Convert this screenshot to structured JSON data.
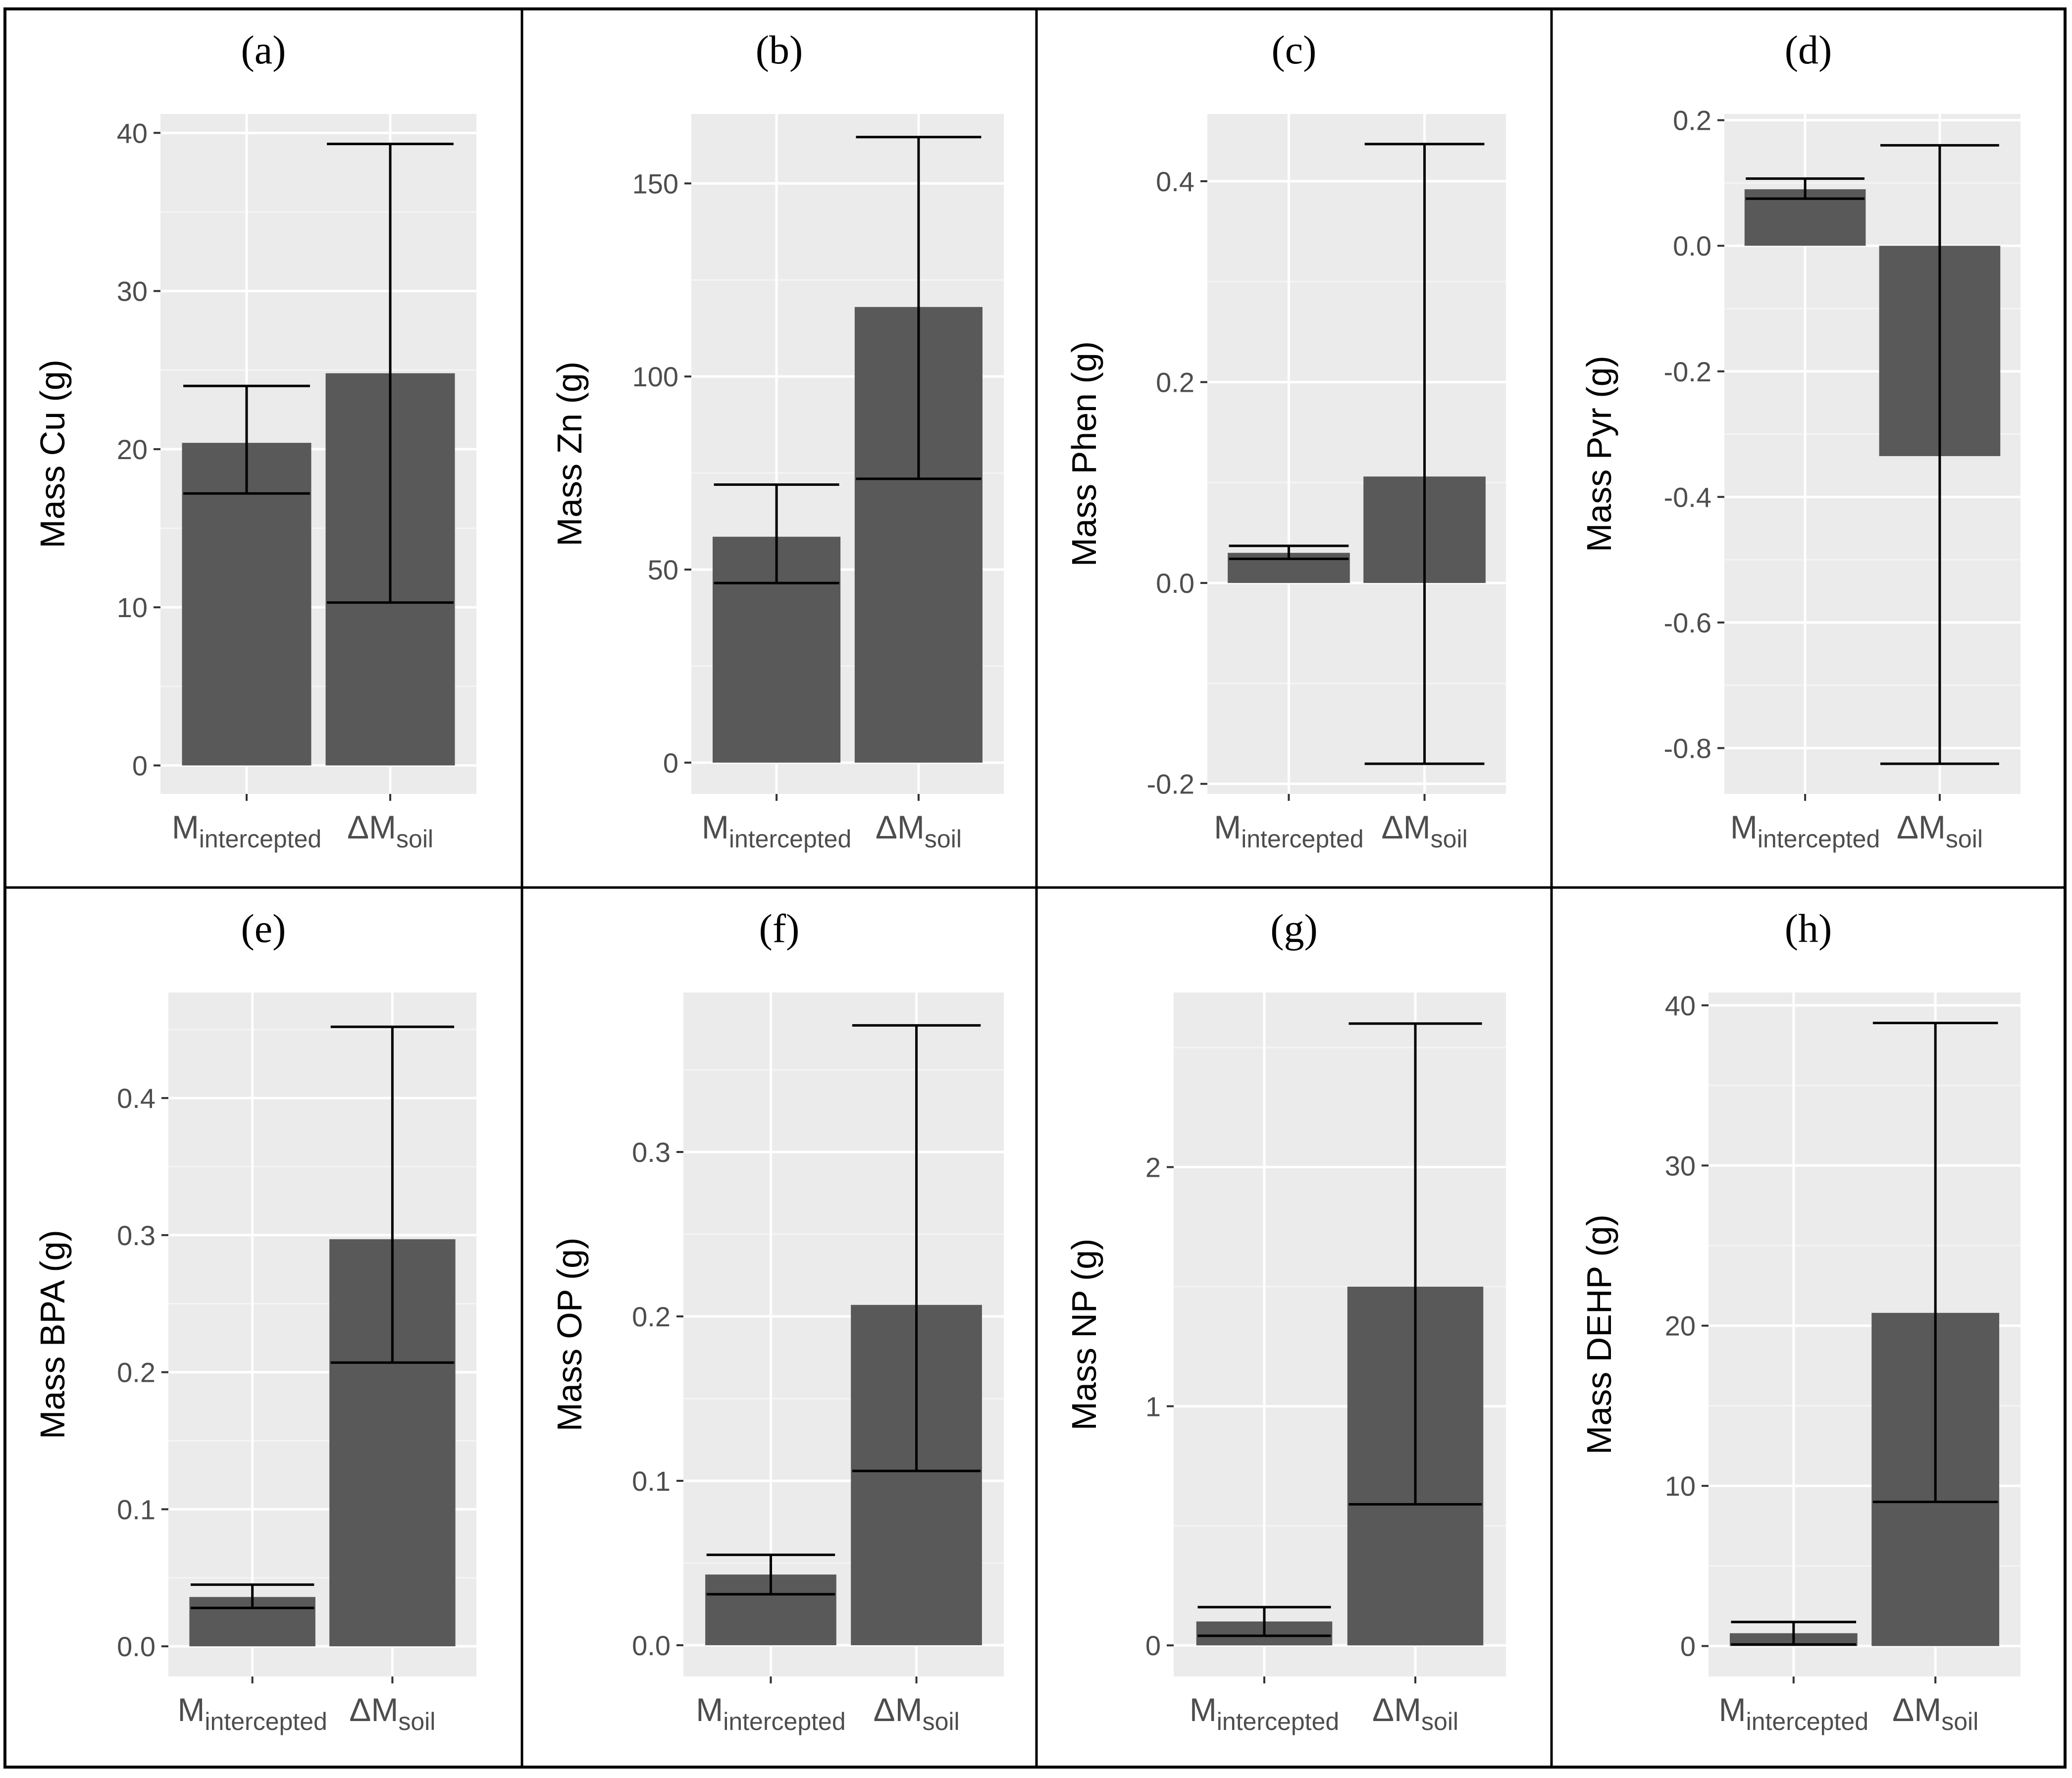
{
  "figure": {
    "category_main": [
      "M",
      "ΔM"
    ],
    "category_sub": [
      "intercepted",
      "soil"
    ]
  },
  "colors": {
    "panel_bg": "#ebebeb",
    "grid_major": "#ffffff",
    "grid_minor": "#f4f4f4",
    "bar": "#595959",
    "errorbar": "#000000",
    "tick_text": "#4d4d4d",
    "border": "#000000"
  },
  "chart_data": [
    {
      "panel": "(a)",
      "type": "bar",
      "ylabel": "Mass Cu (g)",
      "categories": [
        "M_intercepted",
        "ΔM_soil"
      ],
      "values": [
        20.4,
        24.8
      ],
      "error_low": [
        17.2,
        10.3
      ],
      "error_high": [
        24.0,
        39.3
      ],
      "ylim": [
        -1.8,
        41.2
      ],
      "yticks": [
        0,
        10,
        20,
        30,
        40
      ],
      "tick_labels": [
        "0",
        "10",
        "20",
        "30",
        "40"
      ]
    },
    {
      "panel": "(b)",
      "type": "bar",
      "ylabel": "Mass Zn (g)",
      "categories": [
        "M_intercepted",
        "ΔM_soil"
      ],
      "values": [
        58.5,
        118.0
      ],
      "error_low": [
        46.5,
        73.5
      ],
      "error_high": [
        72.0,
        162.0
      ],
      "ylim": [
        -8.1,
        168.0
      ],
      "yticks": [
        0,
        50,
        100,
        150
      ],
      "tick_labels": [
        "0",
        "50",
        "100",
        "150"
      ]
    },
    {
      "panel": "(c)",
      "type": "bar",
      "ylabel": "Mass Phen (g)",
      "categories": [
        "M_intercepted",
        "ΔM_soil"
      ],
      "values": [
        0.03,
        0.106
      ],
      "error_low": [
        0.024,
        -0.18
      ],
      "error_high": [
        0.037,
        0.437
      ],
      "ylim": [
        -0.21,
        0.467
      ],
      "yticks": [
        -0.2,
        0.0,
        0.2,
        0.4
      ],
      "tick_labels": [
        "-0.2",
        "0.0",
        "0.2",
        "0.4"
      ]
    },
    {
      "panel": "(d)",
      "type": "bar",
      "ylabel": "Mass Pyr (g)",
      "categories": [
        "M_intercepted",
        "ΔM_soil"
      ],
      "values": [
        0.09,
        -0.335
      ],
      "error_low": [
        0.075,
        -0.825
      ],
      "error_high": [
        0.107,
        0.16
      ],
      "ylim": [
        -0.873,
        0.21
      ],
      "yticks": [
        -0.8,
        -0.6,
        -0.4,
        -0.2,
        0.0,
        0.2
      ],
      "tick_labels": [
        "-0.8",
        "-0.6",
        "-0.4",
        "-0.2",
        "0.0",
        "0.2"
      ]
    },
    {
      "panel": "(e)",
      "type": "bar",
      "ylabel": "Mass BPA (g)",
      "categories": [
        "M_intercepted",
        "ΔM_soil"
      ],
      "values": [
        0.036,
        0.297
      ],
      "error_low": [
        0.028,
        0.207
      ],
      "error_high": [
        0.045,
        0.452
      ],
      "ylim": [
        -0.022,
        0.477
      ],
      "yticks": [
        0.0,
        0.1,
        0.2,
        0.3,
        0.4
      ],
      "tick_labels": [
        "0.0",
        "0.1",
        "0.2",
        "0.3",
        "0.4"
      ]
    },
    {
      "panel": "(f)",
      "type": "bar",
      "ylabel": "Mass OP (g)",
      "categories": [
        "M_intercepted",
        "ΔM_soil"
      ],
      "values": [
        0.043,
        0.207
      ],
      "error_low": [
        0.031,
        0.106
      ],
      "error_high": [
        0.055,
        0.377
      ],
      "ylim": [
        -0.019,
        0.397
      ],
      "yticks": [
        0.0,
        0.1,
        0.2,
        0.3
      ],
      "tick_labels": [
        "0.0",
        "0.1",
        "0.2",
        "0.3"
      ]
    },
    {
      "panel": "(g)",
      "type": "bar",
      "ylabel": "Mass NP (g)",
      "categories": [
        "M_intercepted",
        "ΔM_soil"
      ],
      "values": [
        0.1,
        1.5
      ],
      "error_low": [
        0.04,
        0.59
      ],
      "error_high": [
        0.16,
        2.6
      ],
      "ylim": [
        -0.13,
        2.73
      ],
      "yticks": [
        0,
        1,
        2
      ],
      "tick_labels": [
        "0",
        "1",
        "2"
      ]
    },
    {
      "panel": "(h)",
      "type": "bar",
      "ylabel": "Mass DEHP (g)",
      "categories": [
        "M_intercepted",
        "ΔM_soil"
      ],
      "values": [
        0.8,
        20.8
      ],
      "error_low": [
        0.1,
        9.0
      ],
      "error_high": [
        1.5,
        38.9
      ],
      "ylim": [
        -1.9,
        40.8
      ],
      "yticks": [
        0,
        10,
        20,
        30,
        40
      ],
      "tick_labels": [
        "0",
        "10",
        "20",
        "30",
        "40"
      ]
    }
  ]
}
